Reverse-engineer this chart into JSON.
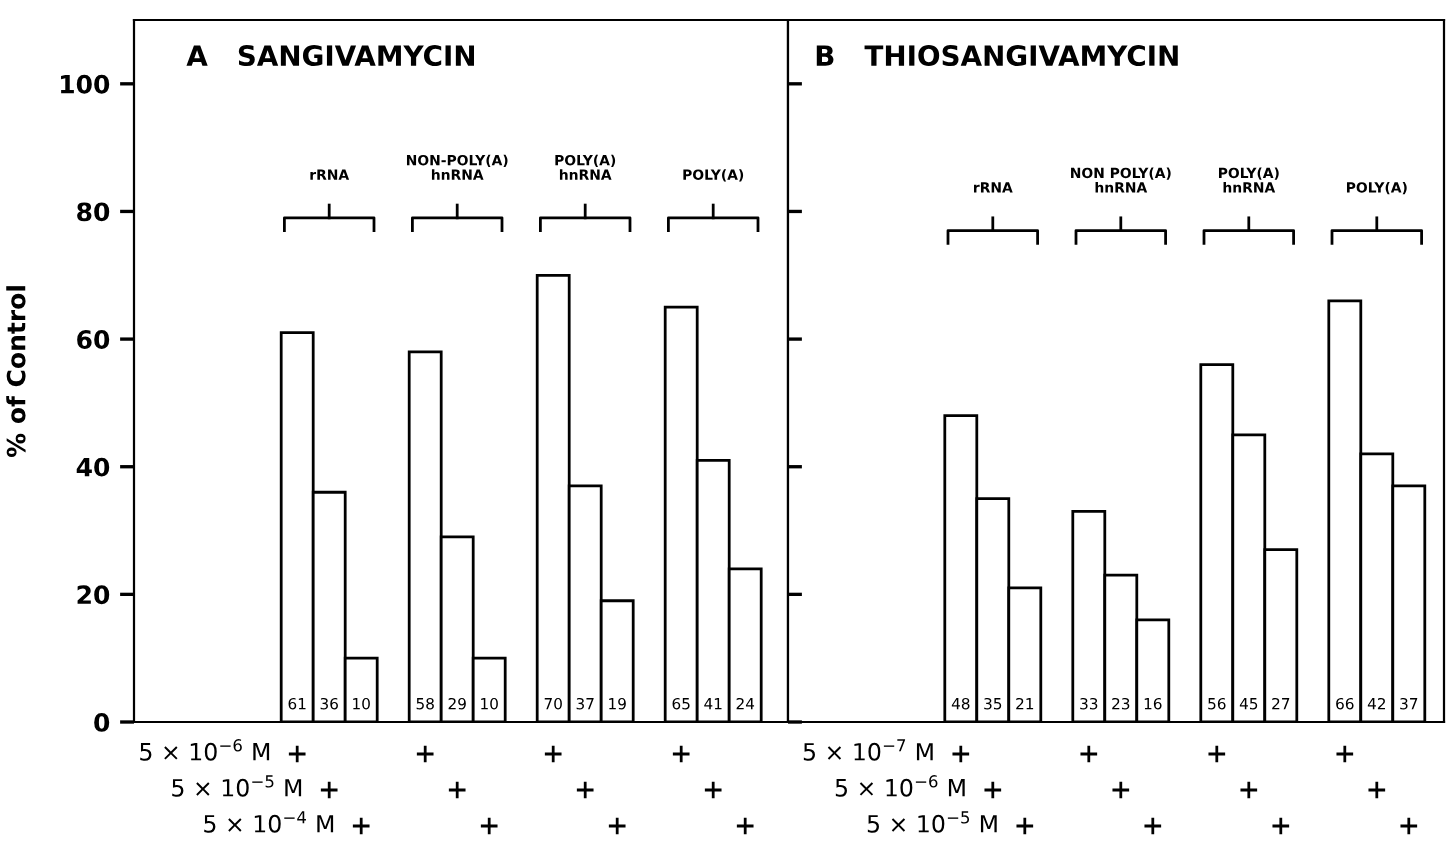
{
  "chart_data": [
    {
      "type": "bar",
      "title": "A   SANGIVAMYCIN",
      "ylabel": "% of Control",
      "categories": [
        "rRNA",
        "NON-POLY(A)\nhnRNA",
        "POLY(A)\nhnRNA",
        "POLY(A)"
      ],
      "series": [
        {
          "name": "5 × 10$^{−6}$ M",
          "color": "#ffffff",
          "values": [
            61,
            58,
            70,
            65
          ]
        },
        {
          "name": "5 × 10$^{−5}$ M",
          "color": "#ffffff",
          "values": [
            36,
            29,
            37,
            41
          ]
        },
        {
          "name": "5 × 10$^{−4}$ M",
          "color": "#ffffff",
          "values": [
            10,
            10,
            19,
            24
          ]
        }
      ],
      "data_labels": true,
      "ylim": [
        0,
        110
      ],
      "yticks": [
        0,
        20,
        40,
        60,
        80,
        100
      ],
      "grid": false,
      "legend": "bottom"
    },
    {
      "type": "bar",
      "title": "B   THIOSANGIVAMYCIN",
      "categories": [
        "rRNA",
        "NON POLY(A)\nhnRNA",
        "POLY(A)\nhnRNA",
        "POLY(A)"
      ],
      "series": [
        {
          "name": "5 × 10$^{−7}$ M",
          "color": "#ffffff",
          "values": [
            48,
            33,
            56,
            66
          ]
        },
        {
          "name": "5 × 10$^{−6}$ M",
          "color": "#ffffff",
          "values": [
            35,
            23,
            45,
            42
          ]
        },
        {
          "name": "5 × 10$^{−5}$ M",
          "color": "#ffffff",
          "values": [
            21,
            16,
            27,
            37
          ]
        }
      ],
      "data_labels": true,
      "ylim": [
        0,
        110
      ],
      "yticks": [
        0,
        20,
        40,
        60,
        80,
        100
      ],
      "tick_labels": "x",
      "grid": false,
      "legend": "bottom"
    }
  ]
}
